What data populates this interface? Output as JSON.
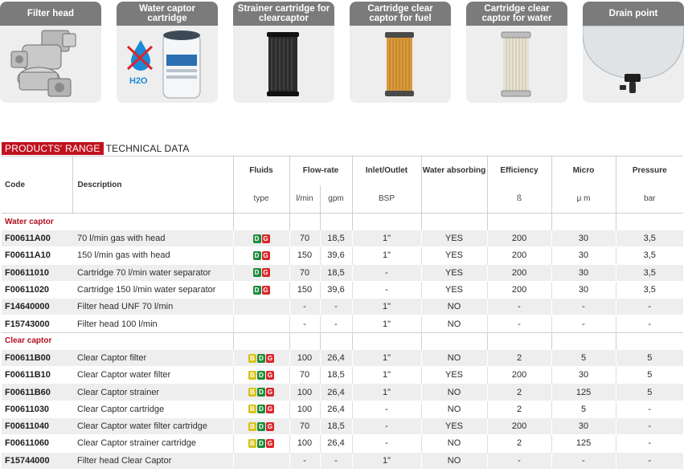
{
  "cards": [
    {
      "label": "Filter head",
      "image": "filter-head-image"
    },
    {
      "label": "Water captor cartridge",
      "image": "water-captor-cartridge-image",
      "overlay_text": "H2O"
    },
    {
      "label": "Strainer cartridge for clearcaptor",
      "image": "strainer-cartridge-image"
    },
    {
      "label": "Cartridge clear captor for fuel",
      "image": "fuel-cartridge-image"
    },
    {
      "label": "Cartridge clear captor for water",
      "image": "water-cartridge-image"
    },
    {
      "label": "Drain point",
      "image": "drain-point-image"
    }
  ],
  "heading": {
    "tag": "PRODUCTS' RANGE",
    "rest": "TECHNICAL DATA"
  },
  "table": {
    "headers": {
      "code": "Code",
      "description": "Description",
      "fluids": "Fluids",
      "fluids_sub": "type",
      "flow_rate": "Flow-rate",
      "flow_lmin": "l/min",
      "flow_gpm": "gpm",
      "inlet": "Inlet/Outlet",
      "inlet_sub": "BSP",
      "water": "Water absorbing",
      "efficiency": "Efficiency",
      "efficiency_sub": "ß",
      "micro": "Micro",
      "micro_sub": "μ m",
      "pressure": "Pressure",
      "pressure_sub": "bar"
    },
    "groups": [
      {
        "title": "Water captor",
        "rows": [
          {
            "code": "F00611A00",
            "description": "70 l/min gas with head",
            "fluids": [
              "D",
              "G"
            ],
            "lmin": "70",
            "gpm": "18,5",
            "inlet": "1\"",
            "water": "YES",
            "efficiency": "200",
            "micro": "30",
            "pressure": "3,5"
          },
          {
            "code": "F00611A10",
            "description": "150 l/min gas with head",
            "fluids": [
              "D",
              "G"
            ],
            "lmin": "150",
            "gpm": "39,6",
            "inlet": "1\"",
            "water": "YES",
            "efficiency": "200",
            "micro": "30",
            "pressure": "3,5"
          },
          {
            "code": "F00611010",
            "description": "Cartridge 70 l/min water separator",
            "fluids": [
              "D",
              "G"
            ],
            "lmin": "70",
            "gpm": "18,5",
            "inlet": "-",
            "water": "YES",
            "efficiency": "200",
            "micro": "30",
            "pressure": "3,5"
          },
          {
            "code": "F00611020",
            "description": "Cartridge 150 l/min water separator",
            "fluids": [
              "D",
              "G"
            ],
            "lmin": "150",
            "gpm": "39,6",
            "inlet": "-",
            "water": "YES",
            "efficiency": "200",
            "micro": "30",
            "pressure": "3,5"
          },
          {
            "code": "F14640000",
            "description": "Filter head UNF 70 l/min",
            "fluids": [],
            "lmin": "-",
            "gpm": "-",
            "inlet": "1\"",
            "water": "NO",
            "efficiency": "-",
            "micro": "-",
            "pressure": "-"
          },
          {
            "code": "F15743000",
            "description": "Filter head 100 l/min",
            "fluids": [],
            "lmin": "-",
            "gpm": "-",
            "inlet": "1\"",
            "water": "NO",
            "efficiency": "-",
            "micro": "-",
            "pressure": "-"
          }
        ]
      },
      {
        "title": "Clear captor",
        "rows": [
          {
            "code": "F00611B00",
            "description": "Clear Captor filter",
            "fluids": [
              "B",
              "D",
              "G"
            ],
            "lmin": "100",
            "gpm": "26,4",
            "inlet": "1\"",
            "water": "NO",
            "efficiency": "2",
            "micro": "5",
            "pressure": "5"
          },
          {
            "code": "F00611B10",
            "description": "Clear Captor water filter",
            "fluids": [
              "B",
              "D",
              "G"
            ],
            "lmin": "70",
            "gpm": "18,5",
            "inlet": "1\"",
            "water": "YES",
            "efficiency": "200",
            "micro": "30",
            "pressure": "5"
          },
          {
            "code": "F00611B60",
            "description": "Clear Captor strainer",
            "fluids": [
              "B",
              "D",
              "G"
            ],
            "lmin": "100",
            "gpm": "26,4",
            "inlet": "1\"",
            "water": "NO",
            "efficiency": "2",
            "micro": "125",
            "pressure": "5"
          },
          {
            "code": "F00611030",
            "description": "Clear Captor cartridge",
            "fluids": [
              "B",
              "D",
              "G"
            ],
            "lmin": "100",
            "gpm": "26,4",
            "inlet": "-",
            "water": "NO",
            "efficiency": "2",
            "micro": "5",
            "pressure": "-"
          },
          {
            "code": "F00611040",
            "description": "Clear Captor water filter cartridge",
            "fluids": [
              "B",
              "D",
              "G"
            ],
            "lmin": "70",
            "gpm": "18,5",
            "inlet": "-",
            "water": "YES",
            "efficiency": "200",
            "micro": "30",
            "pressure": "-"
          },
          {
            "code": "F00611060",
            "description": "Clear Captor strainer cartridge",
            "fluids": [
              "B",
              "D",
              "G"
            ],
            "lmin": "100",
            "gpm": "26,4",
            "inlet": "-",
            "water": "NO",
            "efficiency": "2",
            "micro": "125",
            "pressure": "-"
          },
          {
            "code": "F15744000",
            "description": "Filter head Clear Captor",
            "fluids": [],
            "lmin": "-",
            "gpm": "-",
            "inlet": "1\"",
            "water": "NO",
            "efficiency": "-",
            "micro": "-",
            "pressure": "-"
          }
        ]
      }
    ]
  },
  "colors": {
    "accent": "#c1121f",
    "card_header": "#7b7b7b",
    "row_alt": "#eeeeee",
    "badge_B": "#d8c31a",
    "badge_D": "#1f8a3a",
    "badge_G": "#d8262a"
  }
}
